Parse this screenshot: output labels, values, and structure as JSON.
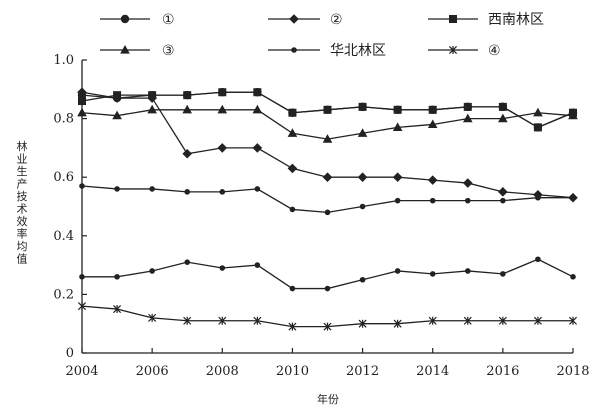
{
  "chart_data": {
    "type": "line",
    "ylabel": "林业生产技术效率均值",
    "xlabel": "年份",
    "x": [
      2004,
      2005,
      2006,
      2007,
      2008,
      2009,
      2010,
      2011,
      2012,
      2013,
      2014,
      2015,
      2016,
      2017,
      2018
    ],
    "xticks": [
      2004,
      2006,
      2008,
      2010,
      2012,
      2014,
      2016,
      2018
    ],
    "xtick_labels": [
      "2004",
      "2006",
      "2008",
      "2010",
      "2012",
      "2014",
      "2016",
      "2018"
    ],
    "yticks": [
      0,
      0.2,
      0.4,
      0.6,
      0.8,
      1.0
    ],
    "ytick_labels": [
      "0",
      "0.2",
      "0.4",
      "0.6",
      "0.8",
      "1.0"
    ],
    "xlim": [
      2004,
      2018
    ],
    "ylim": [
      0,
      1.0
    ],
    "grid": false,
    "legend_position": "top",
    "series": [
      {
        "name": "①",
        "marker": "circle",
        "values": [
          0.88,
          0.87,
          0.88,
          0.88,
          0.89,
          0.89,
          0.82,
          0.83,
          0.84,
          0.83,
          0.83,
          0.84,
          0.84,
          0.77,
          0.82
        ]
      },
      {
        "name": "②",
        "marker": "diamond",
        "values": [
          0.89,
          0.87,
          0.87,
          0.68,
          0.7,
          0.7,
          0.63,
          0.6,
          0.6,
          0.6,
          0.59,
          0.58,
          0.55,
          0.54,
          0.53
        ]
      },
      {
        "name": "西南林区",
        "marker": "square",
        "values": [
          0.86,
          0.88,
          0.88,
          0.88,
          0.89,
          0.89,
          0.82,
          0.83,
          0.84,
          0.83,
          0.83,
          0.84,
          0.84,
          0.77,
          0.82
        ]
      },
      {
        "name": "③",
        "marker": "triangle",
        "values": [
          0.82,
          0.81,
          0.83,
          0.83,
          0.83,
          0.83,
          0.75,
          0.73,
          0.75,
          0.77,
          0.78,
          0.8,
          0.8,
          0.82,
          0.81
        ]
      },
      {
        "name": "华北林区",
        "marker": "dot",
        "values": [
          0.57,
          0.56,
          0.56,
          0.55,
          0.55,
          0.56,
          0.49,
          0.48,
          0.5,
          0.52,
          0.52,
          0.52,
          0.52,
          0.53,
          0.53
        ]
      },
      {
        "name": "④",
        "marker": "x",
        "values": [
          0.16,
          0.15,
          0.12,
          0.11,
          0.11,
          0.11,
          0.09,
          0.09,
          0.1,
          0.1,
          0.11,
          0.11,
          0.11,
          0.11,
          0.11
        ]
      },
      {
        "name": "",
        "marker": "dot",
        "values": [
          0.26,
          0.26,
          0.28,
          0.31,
          0.29,
          0.3,
          0.22,
          0.22,
          0.25,
          0.28,
          0.27,
          0.28,
          0.27,
          0.32,
          0.26
        ]
      }
    ]
  }
}
